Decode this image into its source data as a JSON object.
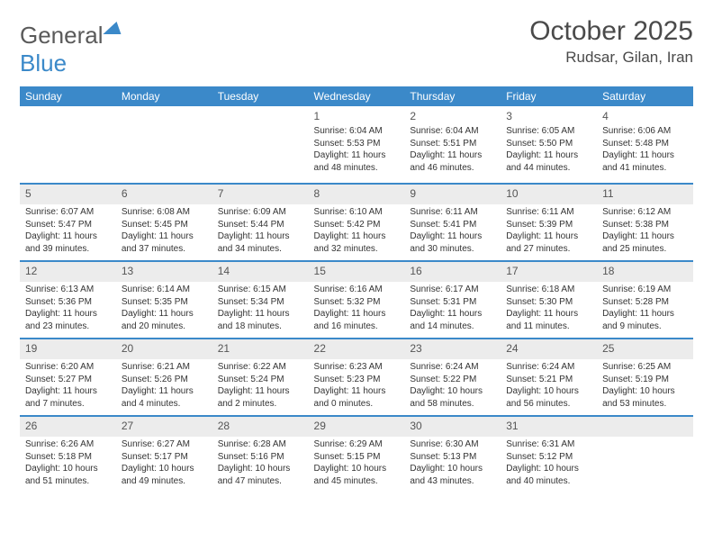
{
  "logo": {
    "textA": "General",
    "textB": "Blue"
  },
  "title": "October 2025",
  "location": "Rudsar, Gilan, Iran",
  "colors": {
    "accent": "#3b89c9",
    "band": "#ececec",
    "text": "#333333"
  },
  "dayNames": [
    "Sunday",
    "Monday",
    "Tuesday",
    "Wednesday",
    "Thursday",
    "Friday",
    "Saturday"
  ],
  "weeks": [
    [
      {
        "n": "",
        "sr": "",
        "ss": "",
        "dl": ""
      },
      {
        "n": "",
        "sr": "",
        "ss": "",
        "dl": ""
      },
      {
        "n": "",
        "sr": "",
        "ss": "",
        "dl": ""
      },
      {
        "n": "1",
        "sr": "Sunrise: 6:04 AM",
        "ss": "Sunset: 5:53 PM",
        "dl": "Daylight: 11 hours and 48 minutes."
      },
      {
        "n": "2",
        "sr": "Sunrise: 6:04 AM",
        "ss": "Sunset: 5:51 PM",
        "dl": "Daylight: 11 hours and 46 minutes."
      },
      {
        "n": "3",
        "sr": "Sunrise: 6:05 AM",
        "ss": "Sunset: 5:50 PM",
        "dl": "Daylight: 11 hours and 44 minutes."
      },
      {
        "n": "4",
        "sr": "Sunrise: 6:06 AM",
        "ss": "Sunset: 5:48 PM",
        "dl": "Daylight: 11 hours and 41 minutes."
      }
    ],
    [
      {
        "n": "5",
        "sr": "Sunrise: 6:07 AM",
        "ss": "Sunset: 5:47 PM",
        "dl": "Daylight: 11 hours and 39 minutes."
      },
      {
        "n": "6",
        "sr": "Sunrise: 6:08 AM",
        "ss": "Sunset: 5:45 PM",
        "dl": "Daylight: 11 hours and 37 minutes."
      },
      {
        "n": "7",
        "sr": "Sunrise: 6:09 AM",
        "ss": "Sunset: 5:44 PM",
        "dl": "Daylight: 11 hours and 34 minutes."
      },
      {
        "n": "8",
        "sr": "Sunrise: 6:10 AM",
        "ss": "Sunset: 5:42 PM",
        "dl": "Daylight: 11 hours and 32 minutes."
      },
      {
        "n": "9",
        "sr": "Sunrise: 6:11 AM",
        "ss": "Sunset: 5:41 PM",
        "dl": "Daylight: 11 hours and 30 minutes."
      },
      {
        "n": "10",
        "sr": "Sunrise: 6:11 AM",
        "ss": "Sunset: 5:39 PM",
        "dl": "Daylight: 11 hours and 27 minutes."
      },
      {
        "n": "11",
        "sr": "Sunrise: 6:12 AM",
        "ss": "Sunset: 5:38 PM",
        "dl": "Daylight: 11 hours and 25 minutes."
      }
    ],
    [
      {
        "n": "12",
        "sr": "Sunrise: 6:13 AM",
        "ss": "Sunset: 5:36 PM",
        "dl": "Daylight: 11 hours and 23 minutes."
      },
      {
        "n": "13",
        "sr": "Sunrise: 6:14 AM",
        "ss": "Sunset: 5:35 PM",
        "dl": "Daylight: 11 hours and 20 minutes."
      },
      {
        "n": "14",
        "sr": "Sunrise: 6:15 AM",
        "ss": "Sunset: 5:34 PM",
        "dl": "Daylight: 11 hours and 18 minutes."
      },
      {
        "n": "15",
        "sr": "Sunrise: 6:16 AM",
        "ss": "Sunset: 5:32 PM",
        "dl": "Daylight: 11 hours and 16 minutes."
      },
      {
        "n": "16",
        "sr": "Sunrise: 6:17 AM",
        "ss": "Sunset: 5:31 PM",
        "dl": "Daylight: 11 hours and 14 minutes."
      },
      {
        "n": "17",
        "sr": "Sunrise: 6:18 AM",
        "ss": "Sunset: 5:30 PM",
        "dl": "Daylight: 11 hours and 11 minutes."
      },
      {
        "n": "18",
        "sr": "Sunrise: 6:19 AM",
        "ss": "Sunset: 5:28 PM",
        "dl": "Daylight: 11 hours and 9 minutes."
      }
    ],
    [
      {
        "n": "19",
        "sr": "Sunrise: 6:20 AM",
        "ss": "Sunset: 5:27 PM",
        "dl": "Daylight: 11 hours and 7 minutes."
      },
      {
        "n": "20",
        "sr": "Sunrise: 6:21 AM",
        "ss": "Sunset: 5:26 PM",
        "dl": "Daylight: 11 hours and 4 minutes."
      },
      {
        "n": "21",
        "sr": "Sunrise: 6:22 AM",
        "ss": "Sunset: 5:24 PM",
        "dl": "Daylight: 11 hours and 2 minutes."
      },
      {
        "n": "22",
        "sr": "Sunrise: 6:23 AM",
        "ss": "Sunset: 5:23 PM",
        "dl": "Daylight: 11 hours and 0 minutes."
      },
      {
        "n": "23",
        "sr": "Sunrise: 6:24 AM",
        "ss": "Sunset: 5:22 PM",
        "dl": "Daylight: 10 hours and 58 minutes."
      },
      {
        "n": "24",
        "sr": "Sunrise: 6:24 AM",
        "ss": "Sunset: 5:21 PM",
        "dl": "Daylight: 10 hours and 56 minutes."
      },
      {
        "n": "25",
        "sr": "Sunrise: 6:25 AM",
        "ss": "Sunset: 5:19 PM",
        "dl": "Daylight: 10 hours and 53 minutes."
      }
    ],
    [
      {
        "n": "26",
        "sr": "Sunrise: 6:26 AM",
        "ss": "Sunset: 5:18 PM",
        "dl": "Daylight: 10 hours and 51 minutes."
      },
      {
        "n": "27",
        "sr": "Sunrise: 6:27 AM",
        "ss": "Sunset: 5:17 PM",
        "dl": "Daylight: 10 hours and 49 minutes."
      },
      {
        "n": "28",
        "sr": "Sunrise: 6:28 AM",
        "ss": "Sunset: 5:16 PM",
        "dl": "Daylight: 10 hours and 47 minutes."
      },
      {
        "n": "29",
        "sr": "Sunrise: 6:29 AM",
        "ss": "Sunset: 5:15 PM",
        "dl": "Daylight: 10 hours and 45 minutes."
      },
      {
        "n": "30",
        "sr": "Sunrise: 6:30 AM",
        "ss": "Sunset: 5:13 PM",
        "dl": "Daylight: 10 hours and 43 minutes."
      },
      {
        "n": "31",
        "sr": "Sunrise: 6:31 AM",
        "ss": "Sunset: 5:12 PM",
        "dl": "Daylight: 10 hours and 40 minutes."
      },
      {
        "n": "",
        "sr": "",
        "ss": "",
        "dl": ""
      }
    ]
  ],
  "bandRows": [
    false,
    true,
    true,
    true,
    true
  ]
}
